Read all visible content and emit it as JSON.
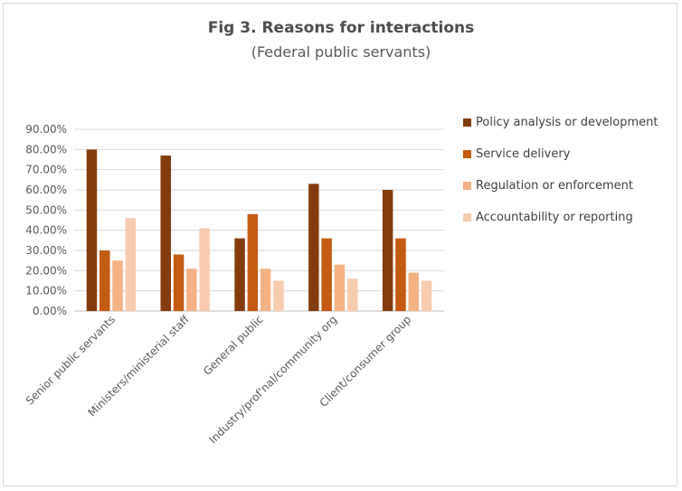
{
  "chart_data": {
    "type": "bar",
    "title": "Fig 3. Reasons for interactions",
    "subtitle": "(Federal public servants)",
    "xlabel": "",
    "ylabel": "",
    "ylim": [
      0,
      0.9
    ],
    "yticks": [
      "0.00%",
      "10.00%",
      "20.00%",
      "30.00%",
      "40.00%",
      "50.00%",
      "60.00%",
      "70.00%",
      "80.00%",
      "90.00%"
    ],
    "grid": true,
    "legend_position": "right",
    "categories": [
      "Senior public servants",
      "Ministers/ministerial staff",
      "General public",
      "Industry/prof'nal/community org",
      "Client/consumer group"
    ],
    "series": [
      {
        "name": "Policy analysis or development",
        "color": "#843c0c",
        "values": [
          0.8,
          0.77,
          0.36,
          0.63,
          0.6
        ]
      },
      {
        "name": "Service delivery",
        "color": "#c55a11",
        "values": [
          0.3,
          0.28,
          0.48,
          0.36,
          0.36
        ]
      },
      {
        "name": "Regulation or enforcement",
        "color": "#f4b183",
        "values": [
          0.25,
          0.21,
          0.21,
          0.23,
          0.19
        ]
      },
      {
        "name": "Accountability or reporting",
        "color": "#f8cbad",
        "values": [
          0.46,
          0.41,
          0.15,
          0.16,
          0.15
        ]
      }
    ]
  }
}
